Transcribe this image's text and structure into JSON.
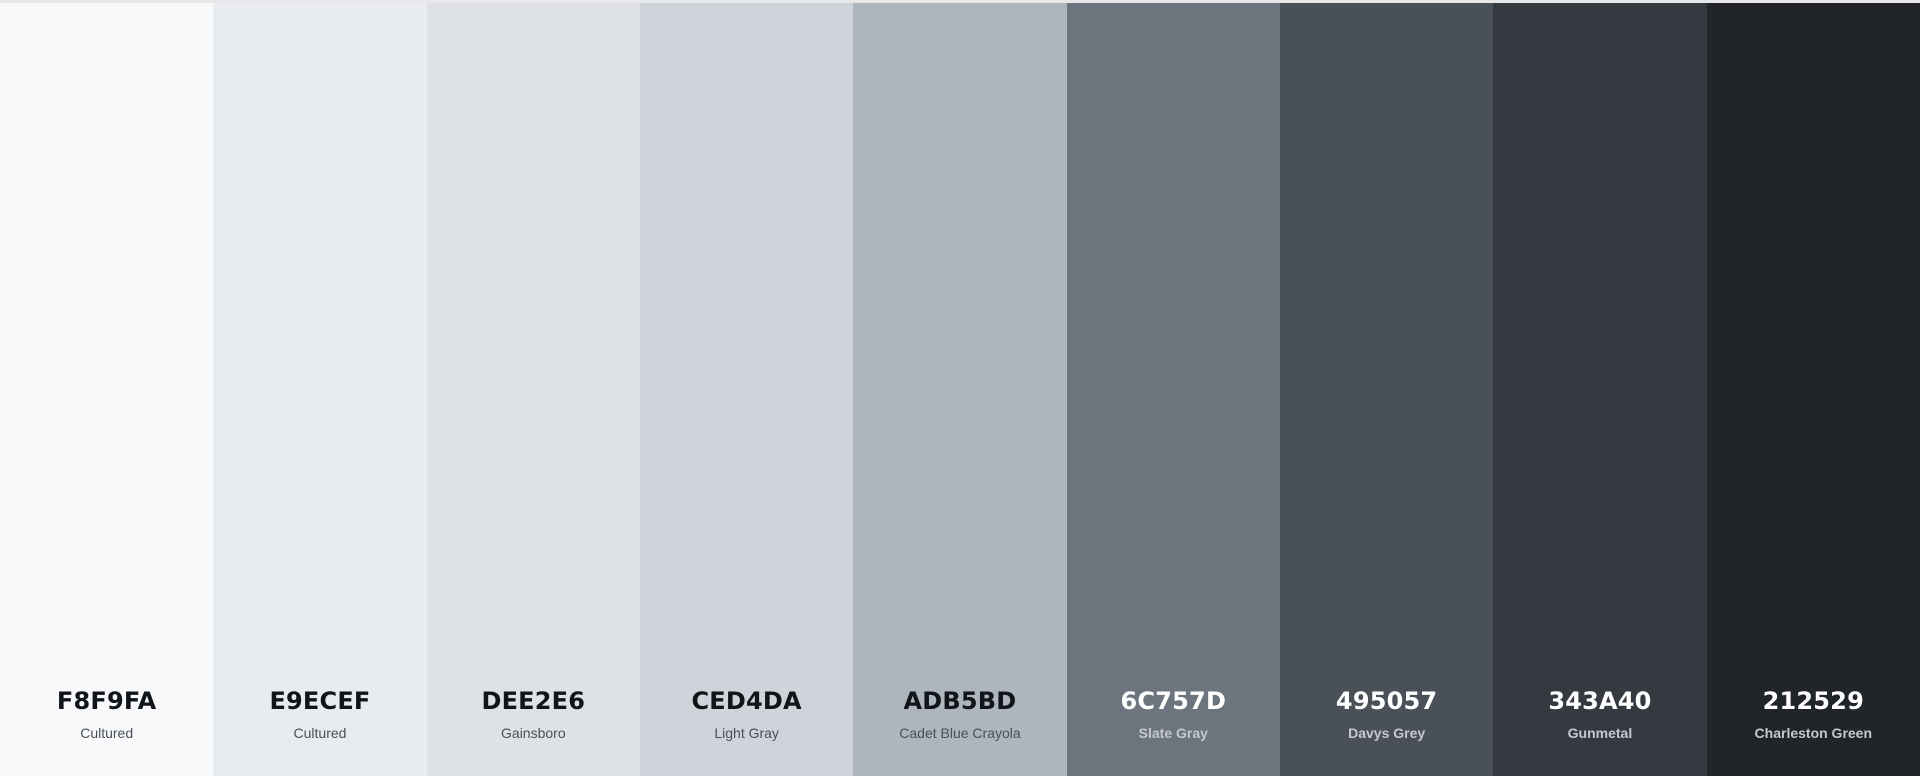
{
  "palette": {
    "swatches": [
      {
        "hex": "F8F9FA",
        "name": "Cultured",
        "color": "#F8F9FA",
        "text_theme": "light"
      },
      {
        "hex": "E9ECEF",
        "name": "Cultured",
        "color": "#E9ECEF",
        "text_theme": "light"
      },
      {
        "hex": "DEE2E6",
        "name": "Gainsboro",
        "color": "#DEE2E6",
        "text_theme": "light"
      },
      {
        "hex": "CED4DA",
        "name": "Light Gray",
        "color": "#CED4DA",
        "text_theme": "light"
      },
      {
        "hex": "ADB5BD",
        "name": "Cadet Blue Crayola",
        "color": "#ADB5BD",
        "text_theme": "light"
      },
      {
        "hex": "6C757D",
        "name": "Slate Gray",
        "color": "#6C757D",
        "text_theme": "dark"
      },
      {
        "hex": "495057",
        "name": "Davys Grey",
        "color": "#495057",
        "text_theme": "dark"
      },
      {
        "hex": "343A40",
        "name": "Gunmetal",
        "color": "#343A40",
        "text_theme": "dark"
      },
      {
        "hex": "212529",
        "name": "Charleston Green",
        "color": "#212529",
        "text_theme": "dark"
      }
    ]
  }
}
